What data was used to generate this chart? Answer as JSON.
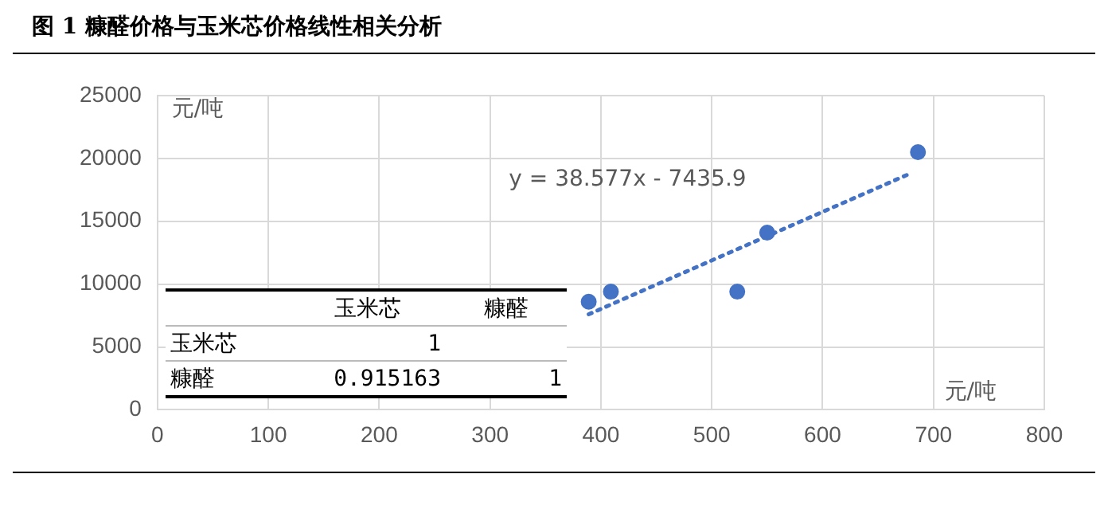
{
  "chart_data": {
    "type": "scatter",
    "title": "图 1  糠醛价格与玉米芯价格线性相关分析",
    "xlabel": "元/吨",
    "ylabel": "元/吨",
    "annotations": [
      "y = 38.577x - 7435.9",
      "玉米芯",
      "糠醛",
      "玉米芯",
      "1",
      "糠醛",
      "0.915163",
      "1"
    ],
    "series": [
      {
        "color": "#4472c4",
        "x": [
          389,
          409,
          523,
          550,
          686
        ],
        "values": [
          8600,
          9400,
          9400,
          14100,
          20500
        ],
        "marker": "circle"
      },
      {
        "type": "line",
        "color": "#4472c4",
        "x": [
          389,
          679
        ],
        "values": [
          7600,
          18800
        ],
        "line_style": "dotted",
        "marker": "none"
      }
    ],
    "xlim": [
      0,
      800
    ],
    "xticks": [
      0,
      100,
      200,
      300,
      400,
      500,
      600,
      700,
      800
    ],
    "ylim": [
      0,
      25000
    ],
    "yticks": [
      0,
      5000,
      10000,
      15000,
      20000,
      25000
    ],
    "grid": true,
    "legend": false
  }
}
